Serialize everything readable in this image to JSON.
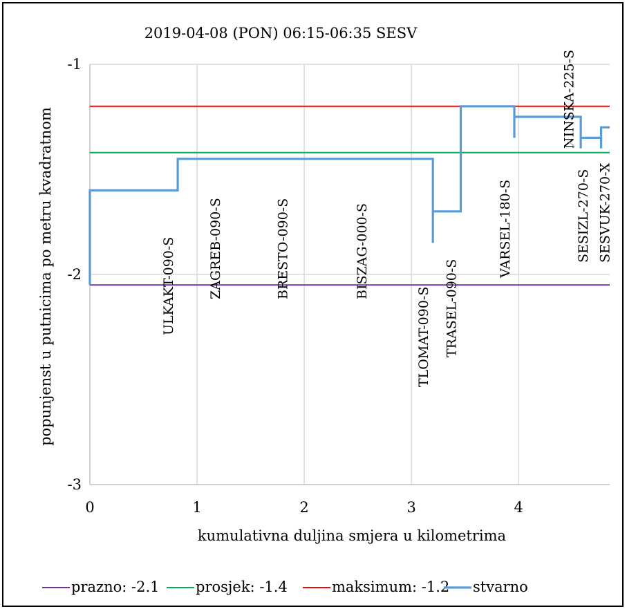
{
  "chart_data": {
    "type": "line",
    "title": "2019-04-08 (PON) 06:15-06:35 SESV",
    "xlabel": "kumulativna duljina smjera u kilometrima",
    "ylabel": "popunjenst u putnicima po metru kvadratnom",
    "xlim": [
      0,
      4.85
    ],
    "ylim": [
      -3,
      -1
    ],
    "x_ticks": [
      0,
      1,
      2,
      3,
      4
    ],
    "x_tick_labels": [
      "0",
      "1",
      "2",
      "3",
      "4"
    ],
    "y_ticks": [
      -1,
      -2,
      -3
    ],
    "y_tick_labels": [
      "-1",
      "-2",
      "-3"
    ],
    "grid": true,
    "legend_position": "bottom",
    "series": [
      {
        "name": "prazno: -2.1",
        "color": "#7030a0",
        "x": [
          0,
          4.85
        ],
        "y": [
          -2.05,
          -2.05
        ]
      },
      {
        "name": "prosjek: -1.4",
        "color": "#00b050",
        "x": [
          0,
          4.85
        ],
        "y": [
          -1.42,
          -1.42
        ]
      },
      {
        "name": "maksimum: -1.2",
        "color": "#ff0000",
        "x": [
          0,
          4.85
        ],
        "y": [
          -1.2,
          -1.2
        ]
      },
      {
        "name": "stvarno",
        "color": "#5b9bd5",
        "x": [
          0,
          0,
          0.82,
          0.82,
          3.2,
          3.2,
          3.2,
          3.2,
          3.46,
          3.46,
          3.96,
          3.96,
          3.96,
          4.58,
          4.58,
          4.58,
          4.58,
          4.77,
          4.77,
          4.77,
          4.85
        ],
        "y": [
          -2.05,
          -1.6,
          -1.6,
          -1.45,
          -1.45,
          -1.85,
          -1.85,
          -1.7,
          -1.7,
          -1.2,
          -1.2,
          -1.35,
          -1.25,
          -1.25,
          -1.4,
          -1.4,
          -1.35,
          -1.35,
          -1.4,
          -1.3,
          -1.3
        ]
      }
    ],
    "annotations": [
      {
        "text": "ULKAKT-090-S",
        "x": 0.82
      },
      {
        "text": "ZAGREB-090-S",
        "x": 1.25
      },
      {
        "text": "BRESTO-090-S",
        "x": 1.88
      },
      {
        "text": "BISZAG-000-S",
        "x": 2.62
      },
      {
        "text": "TLOMAT-090-S",
        "x": 3.2
      },
      {
        "text": "TRASEL-090-S",
        "x": 3.46
      },
      {
        "text": "VARSEL-180-S",
        "x": 3.96
      },
      {
        "text": "NINSKA-225-S",
        "x": 4.55
      },
      {
        "text": "SESIZL-270-S",
        "x": 4.58
      },
      {
        "text": "SESVUK-270-X",
        "x": 4.77
      }
    ]
  }
}
